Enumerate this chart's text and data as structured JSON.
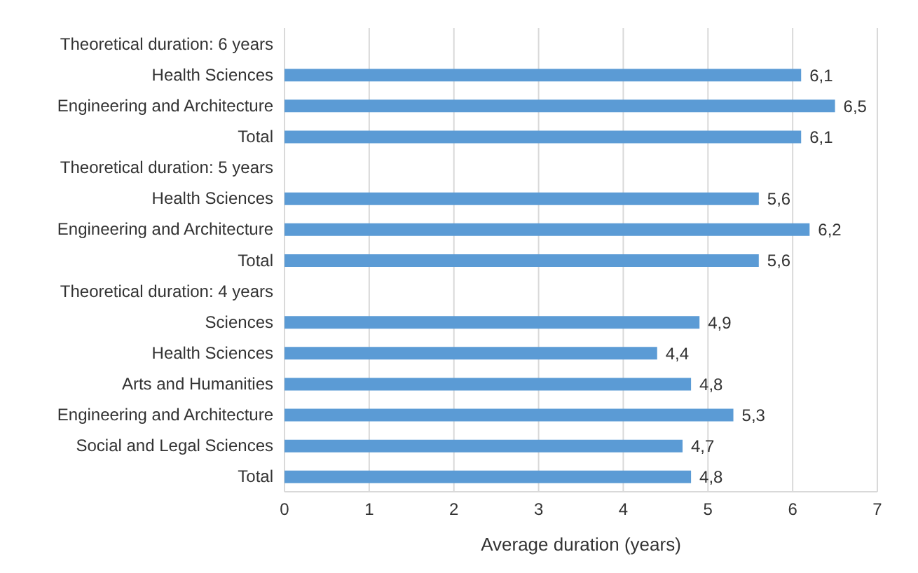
{
  "chart_data": {
    "type": "bar",
    "orientation": "horizontal",
    "xlabel": "Average duration (years)",
    "categories": [
      "Theoretical duration: 6 years",
      "Health Sciences",
      "Engineering and Architecture",
      "Total",
      "Theoretical duration: 5 years",
      "Health Sciences",
      "Engineering and Architecture",
      "Total",
      "Theoretical duration: 4 years",
      "Sciences",
      "Health Sciences",
      "Arts and Humanities",
      "Engineering and Architecture",
      "Social and Legal Sciences",
      "Total"
    ],
    "values": [
      null,
      6.1,
      6.5,
      6.1,
      null,
      5.6,
      6.2,
      5.6,
      null,
      4.9,
      4.4,
      4.8,
      5.3,
      4.7,
      4.8
    ],
    "value_labels": [
      null,
      "6,1",
      "6,5",
      "6,1",
      null,
      "5,6",
      "6,2",
      "5,6",
      null,
      "4,9",
      "4,4",
      "4,8",
      "5,3",
      "4,7",
      "4,8"
    ],
    "color": "#5b9bd5",
    "xlim": [
      0,
      7
    ],
    "xticks": [
      0,
      1,
      2,
      3,
      4,
      5,
      6,
      7
    ],
    "grid": "x",
    "legend": false
  }
}
